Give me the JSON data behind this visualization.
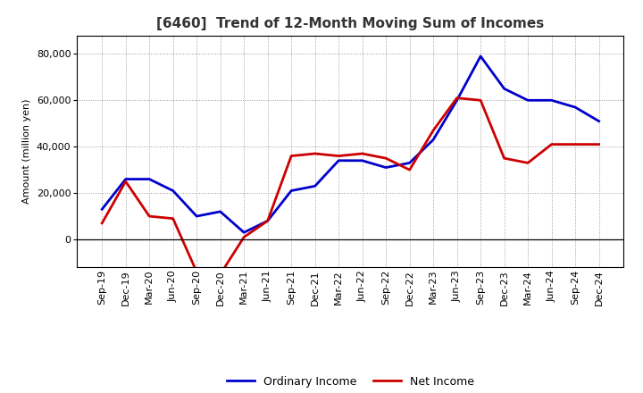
{
  "title": "[6460]  Trend of 12-Month Moving Sum of Incomes",
  "ylabel": "Amount (million yen)",
  "ylim": [
    -12000,
    88000
  ],
  "yticks": [
    0,
    20000,
    40000,
    60000,
    80000
  ],
  "background_color": "#ffffff",
  "grid_color": "#999999",
  "x_labels": [
    "Sep-19",
    "Dec-19",
    "Mar-20",
    "Jun-20",
    "Sep-20",
    "Dec-20",
    "Mar-21",
    "Jun-21",
    "Sep-21",
    "Dec-21",
    "Mar-22",
    "Jun-22",
    "Sep-22",
    "Dec-22",
    "Mar-23",
    "Jun-23",
    "Sep-23",
    "Dec-23",
    "Mar-24",
    "Jun-24",
    "Sep-24",
    "Dec-24"
  ],
  "ordinary_income": [
    13000,
    26000,
    26000,
    21000,
    10000,
    12000,
    3000,
    8000,
    21000,
    23000,
    34000,
    34000,
    31000,
    33000,
    43000,
    60000,
    79000,
    65000,
    60000,
    60000,
    57000,
    51000
  ],
  "net_income": [
    7000,
    25000,
    10000,
    9000,
    -14000,
    -15000,
    1000,
    8000,
    36000,
    37000,
    36000,
    37000,
    35000,
    30000,
    47000,
    61000,
    60000,
    35000,
    33000,
    41000,
    41000,
    41000
  ],
  "ordinary_color": "#0000cc",
  "net_color": "#cc0000",
  "line_width": 2.0,
  "legend_labels": [
    "Ordinary Income",
    "Net Income"
  ],
  "title_color": "#333333",
  "title_fontsize": 11,
  "tick_fontsize": 8,
  "ylabel_fontsize": 8
}
